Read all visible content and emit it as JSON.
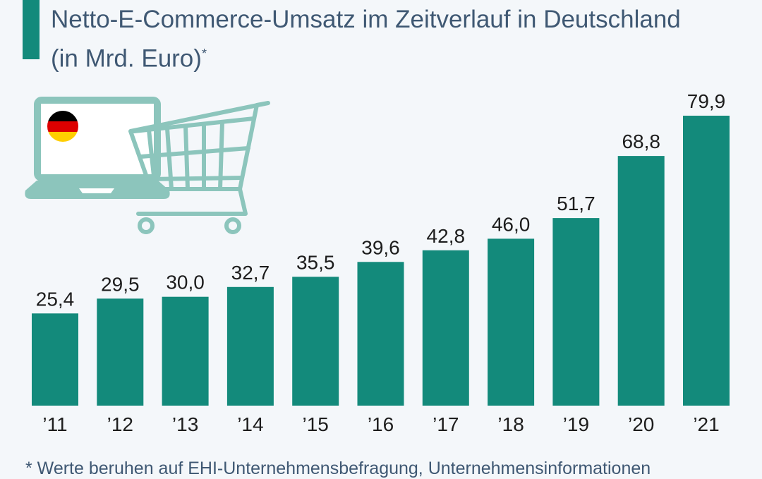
{
  "header": {
    "title_line1": "Netto-E-Commerce-Umsatz im Zeitverlauf in Deutschland",
    "title_line2": "(in Mrd. Euro)",
    "title_marker": "*"
  },
  "footnote": "* Werte beruhen auf EHI-Unternehmensbefragung, Unternehmensinformationen",
  "colors": {
    "bar": "#138a7b",
    "text": "#3f5873",
    "icon": "#8cc5bc",
    "background": "#f4f7fa"
  },
  "chart_data": {
    "type": "bar",
    "title": "Netto-E-Commerce-Umsatz im Zeitverlauf in Deutschland (in Mrd. Euro)",
    "categories": [
      "’11",
      "’12",
      "’13",
      "’14",
      "’15",
      "’16",
      "’17",
      "’18",
      "’19",
      "’20",
      "’21"
    ],
    "values": [
      25.4,
      29.5,
      30.0,
      32.7,
      35.5,
      39.6,
      42.8,
      46.0,
      51.7,
      68.8,
      79.9
    ],
    "value_labels": [
      "25,4",
      "29,5",
      "30,0",
      "32,7",
      "35,5",
      "39,6",
      "42,8",
      "46,0",
      "51,7",
      "68,8",
      "79,9"
    ],
    "xlabel": "",
    "ylabel": "Mrd. Euro",
    "ylim": [
      0,
      79.9
    ],
    "grid": false,
    "legend": "none"
  }
}
